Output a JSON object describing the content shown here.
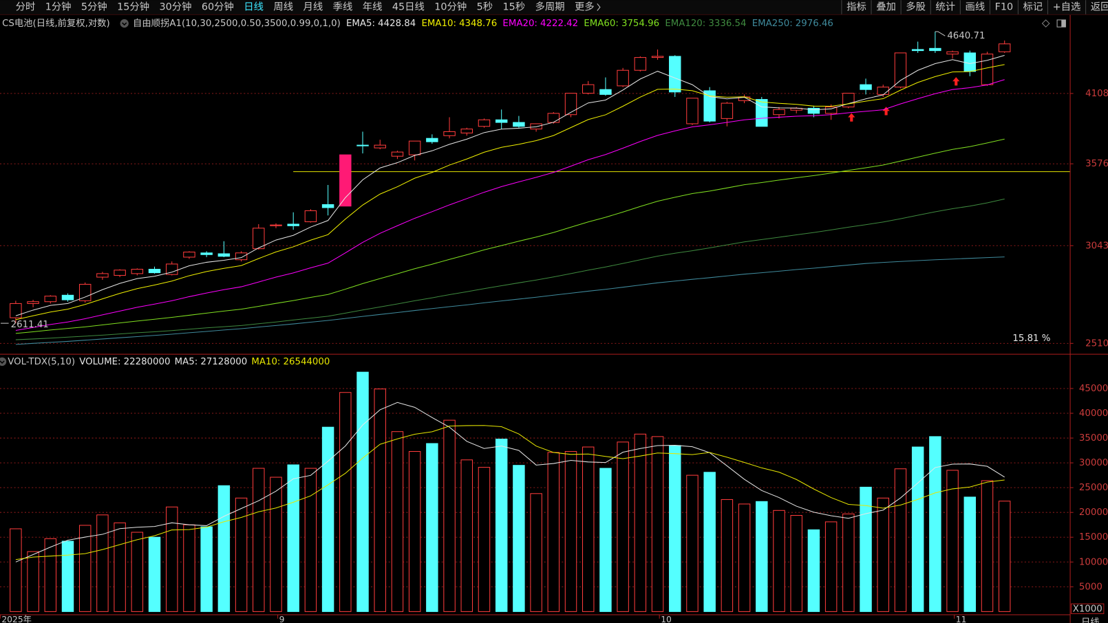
{
  "toolbar": {
    "left": [
      "分时",
      "1分钟",
      "5分钟",
      "15分钟",
      "30分钟",
      "60分钟",
      "日线",
      "周线",
      "月线",
      "季线",
      "年线",
      "45日线",
      "10分钟",
      "5秒",
      "15秒",
      "多周期",
      "更多"
    ],
    "active": 6,
    "right": [
      "指标",
      "叠加",
      "多股",
      "统计",
      "画线",
      "F10",
      "标记",
      "+自选",
      "返回"
    ]
  },
  "corner_label": "日线",
  "chart_data": [
    {
      "type": "candlestick",
      "title": "CS电池(日线,前复权,对数)",
      "indicator": "自由顺拐A1(10,30,2500,0.50,3500,0.99,0,1,0)",
      "categories": [
        "2025年",
        null,
        null,
        null,
        null,
        null,
        null,
        null,
        null,
        null,
        null,
        null,
        null,
        null,
        null,
        null,
        "9",
        null,
        null,
        null,
        null,
        null,
        null,
        null,
        null,
        null,
        null,
        null,
        null,
        null,
        null,
        null,
        null,
        null,
        null,
        null,
        null,
        null,
        "10",
        null,
        null,
        null,
        null,
        null,
        null,
        null,
        null,
        null,
        null,
        null,
        null,
        null,
        null,
        null,
        null,
        "11",
        null,
        null
      ],
      "open": [
        2640,
        2715,
        2725,
        2760,
        2730,
        2860,
        2870,
        2880,
        2905,
        2875,
        2975,
        3000,
        2995,
        2960,
        3025,
        3165,
        3175,
        3190,
        3300,
        3290,
        3710,
        3690,
        3630,
        3640,
        3760,
        3780,
        3800,
        3850,
        3900,
        3880,
        3830,
        3880,
        3940,
        4110,
        4140,
        4170,
        4300,
        4410,
        4420,
        3870,
        4130,
        3910,
        4050,
        4060,
        3940,
        3975,
        3990,
        3950,
        4000,
        4180,
        4100,
        4160,
        4480,
        4490,
        4440,
        4450,
        4180,
        4460
      ],
      "high": [
        2730,
        2735,
        2760,
        2770,
        2830,
        2890,
        2905,
        2910,
        2920,
        2950,
        3010,
        3010,
        3070,
        3010,
        3175,
        3180,
        3250,
        3270,
        3430,
        3640,
        3810,
        3750,
        3670,
        3740,
        3790,
        3920,
        3840,
        3910,
        3980,
        3930,
        3870,
        3960,
        4110,
        4210,
        4240,
        4320,
        4420,
        4480,
        4430,
        4070,
        4160,
        4040,
        4100,
        4080,
        4000,
        4000,
        4010,
        4020,
        4110,
        4230,
        4180,
        4450,
        4550,
        4640.71,
        4470,
        4470,
        4460,
        4560
      ],
      "low": [
        2611.41,
        2695,
        2715,
        2725,
        2720,
        2845,
        2860,
        2870,
        2880,
        2870,
        2965,
        2975,
        2975,
        2950,
        3020,
        3150,
        3140,
        3185,
        3230,
        3290,
        3650,
        3680,
        3610,
        3600,
        3720,
        3760,
        3780,
        3840,
        3830,
        3840,
        3810,
        3870,
        3920,
        4100,
        4090,
        4160,
        4290,
        4390,
        4080,
        3860,
        3880,
        3850,
        4030,
        3850,
        3910,
        3950,
        3920,
        3900,
        3990,
        4100,
        4080,
        4150,
        4450,
        4450,
        4400,
        4250,
        4170,
        4450
      ],
      "close": [
        2715,
        2725,
        2755,
        2735,
        2820,
        2880,
        2900,
        2905,
        2885,
        2935,
        3005,
        2990,
        2980,
        3000,
        3150,
        3170,
        3165,
        3260,
        3280,
        3640,
        3705,
        3710,
        3660,
        3740,
        3735,
        3810,
        3830,
        3900,
        3880,
        3850,
        3870,
        3950,
        4110,
        4180,
        4100,
        4300,
        4410,
        4420,
        4120,
        4070,
        3890,
        4030,
        4080,
        3850,
        3980,
        3990,
        3950,
        4000,
        4110,
        4140,
        4160,
        4450,
        4470,
        4470,
        4460,
        4290,
        4440,
        4530
      ],
      "up_color": "#ff3c3c",
      "down_color": "#54ffff",
      "highlight": 19,
      "highlight_color": "#ff1a75",
      "series": [
        {
          "name": "EMA5:",
          "color": "#e6e6e6",
          "values": [
            2650,
            2680,
            2705,
            2715,
            2750,
            2790,
            2825,
            2852,
            2865,
            2888,
            2925,
            2945,
            2957,
            2972,
            3030,
            3077,
            3106,
            3157,
            3198,
            3345,
            3465,
            3547,
            3584,
            3636,
            3669,
            3716,
            3754,
            3803,
            3829,
            3836,
            3847,
            3881,
            3958,
            4032,
            4055,
            4136,
            4227,
            4292,
            4235,
            4180,
            4083,
            4065,
            4077,
            4001,
            3993,
            3992,
            3978,
            3985,
            4027,
            4065,
            4097,
            4215,
            4300,
            4357,
            4391,
            4357,
            4385,
            4428.84
          ]
        },
        {
          "name": "EMA10:",
          "color": "#f0f000",
          "values": [
            2630,
            2650,
            2670,
            2685,
            2710,
            2740,
            2770,
            2796,
            2816,
            2838,
            2868,
            2892,
            2910,
            2926,
            2967,
            3006,
            3036,
            3076,
            3110,
            3207,
            3297,
            3369,
            3418,
            3476,
            3516,
            3567,
            3610,
            3659,
            3694,
            3716,
            3743,
            3781,
            3841,
            3902,
            3939,
            4006,
            4079,
            4142,
            4144,
            4131,
            4088,
            4078,
            4081,
            4040,
            4029,
            4021,
            4007,
            4006,
            4025,
            4046,
            4066,
            4135,
            4198,
            4247,
            4286,
            4289,
            4320,
            4348.76
          ]
        },
        {
          "name": "EMA20:",
          "color": "#ff00ff",
          "values": [
            2575,
            2590,
            2605,
            2618,
            2635,
            2655,
            2675,
            2695,
            2712,
            2730,
            2752,
            2772,
            2790,
            2806,
            2833,
            2860,
            2884,
            2913,
            2940,
            3000,
            3063,
            3118,
            3165,
            3212,
            3254,
            3298,
            3339,
            3381,
            3419,
            3451,
            3482,
            3516,
            3560,
            3605,
            3642,
            3688,
            3737,
            3782,
            3816,
            3846,
            3862,
            3880,
            3900,
            3912,
            3920,
            3928,
            3932,
            3940,
            3955,
            3966,
            3978,
            4024,
            4066,
            4106,
            4140,
            4155,
            4178,
            4222.42
          ]
        },
        {
          "name": "EMA60:",
          "color": "#80e020",
          "values": [
            2560,
            2568,
            2577,
            2585,
            2593,
            2603,
            2613,
            2623,
            2632,
            2642,
            2653,
            2664,
            2675,
            2685,
            2700,
            2716,
            2731,
            2748,
            2764,
            2793,
            2824,
            2852,
            2879,
            2908,
            2934,
            2962,
            2989,
            3018,
            3044,
            3070,
            3095,
            3123,
            3156,
            3189,
            3218,
            3252,
            3288,
            3322,
            3348,
            3372,
            3389,
            3410,
            3432,
            3446,
            3463,
            3479,
            3494,
            3511,
            3530,
            3548,
            3567,
            3595,
            3624,
            3652,
            3679,
            3699,
            3726,
            3754.96
          ]
        },
        {
          "name": "EMA120:",
          "color": "#3f8a3f",
          "values": [
            2528,
            2532,
            2536,
            2541,
            2546,
            2551,
            2557,
            2563,
            2568,
            2574,
            2581,
            2588,
            2594,
            2600,
            2609,
            2618,
            2628,
            2638,
            2648,
            2664,
            2681,
            2697,
            2713,
            2730,
            2746,
            2763,
            2779,
            2796,
            2812,
            2828,
            2844,
            2861,
            2880,
            2900,
            2918,
            2938,
            2960,
            2981,
            2998,
            3013,
            3030,
            3048,
            3066,
            3080,
            3094,
            3109,
            3123,
            3139,
            3156,
            3172,
            3188,
            3209,
            3231,
            3253,
            3273,
            3290,
            3311,
            3336.54
          ]
        },
        {
          "name": "EMA250:",
          "color": "#3f8a9c",
          "values": [
            2505,
            2510,
            2515,
            2520,
            2526,
            2532,
            2538,
            2544,
            2550,
            2556,
            2563,
            2570,
            2577,
            2584,
            2592,
            2600,
            2608,
            2617,
            2626,
            2636,
            2647,
            2657,
            2667,
            2678,
            2688,
            2698,
            2708,
            2719,
            2729,
            2739,
            2749,
            2760,
            2771,
            2782,
            2792,
            2804,
            2816,
            2828,
            2838,
            2848,
            2857,
            2867,
            2877,
            2885,
            2894,
            2903,
            2911,
            2920,
            2929,
            2938,
            2944,
            2950,
            2955,
            2960,
            2964,
            2968,
            2972,
            2976.46
          ]
        }
      ],
      "ylim": [
        2462,
        4789
      ],
      "log_scale": true,
      "yticks": [
        2510,
        3043,
        3576,
        4108
      ],
      "grid": true,
      "hline": {
        "value": 3521,
        "color": "#e6e600"
      },
      "percent_label": "15.81 %"
    },
    {
      "type": "bar",
      "title": "VOL-TDX(5,10)",
      "name": "VOLUME:",
      "legend_value": 22280000,
      "legend_color": "#e6e6e6",
      "values": [
        16700,
        12100,
        14700,
        14200,
        17400,
        19500,
        17900,
        16000,
        15000,
        21100,
        17500,
        17100,
        25400,
        22900,
        28900,
        27100,
        29600,
        28900,
        37200,
        44200,
        48300,
        44900,
        36300,
        32300,
        33900,
        38600,
        30600,
        29100,
        34800,
        29500,
        23800,
        32100,
        32300,
        33200,
        28900,
        34200,
        35800,
        35300,
        33500,
        27500,
        28100,
        22600,
        21700,
        22200,
        20400,
        19400,
        16500,
        18100,
        19700,
        25100,
        22900,
        28800,
        33200,
        35300,
        28500,
        23100,
        26400,
        22280
      ],
      "series": [
        {
          "name": "MA5:",
          "legend_value": 27128000,
          "color": "#e6e6e6",
          "values": [
            10000,
            11500,
            13000,
            14400,
            15020,
            15580,
            16740,
            17000,
            17160,
            17900,
            17500,
            17340,
            19220,
            20800,
            22360,
            24280,
            26780,
            27480,
            30340,
            33400,
            37640,
            40700,
            42180,
            41200,
            39140,
            37200,
            34340,
            32900,
            33400,
            32520,
            29560,
            29860,
            30500,
            30180,
            30060,
            32140,
            32880,
            33480,
            33540,
            33260,
            32040,
            29400,
            26680,
            24420,
            23000,
            21260,
            20040,
            19320,
            18820,
            19760,
            20460,
            22920,
            25940,
            29060,
            29740,
            29780,
            29300,
            27128
          ]
        },
        {
          "name": "MA10:",
          "legend_value": 26544000,
          "color": "#e6e600",
          "values": [
            10500,
            11000,
            11200,
            11400,
            11700,
            12500,
            13500,
            14500,
            15300,
            16460,
            16540,
            17040,
            18110,
            18980,
            20130,
            20890,
            22060,
            23350,
            25570,
            27880,
            30960,
            33740,
            34830,
            35770,
            36270,
            37420,
            37520,
            37540,
            37300,
            35830,
            33380,
            32100,
            31700,
            31790,
            31290,
            30850,
            31370,
            31990,
            31860,
            31660,
            32090,
            31140,
            30080,
            28980,
            28130,
            26650,
            24720,
            23000,
            21620,
            21380,
            20860,
            21480,
            22630,
            23940,
            24750,
            25120,
            26110,
            26544
          ]
        }
      ],
      "ylim": [
        0,
        51700
      ],
      "yticks": [
        5000,
        10000,
        15000,
        20000,
        25000,
        30000,
        35000,
        40000,
        45000
      ],
      "grid": true,
      "unit_label": "X1000"
    }
  ]
}
